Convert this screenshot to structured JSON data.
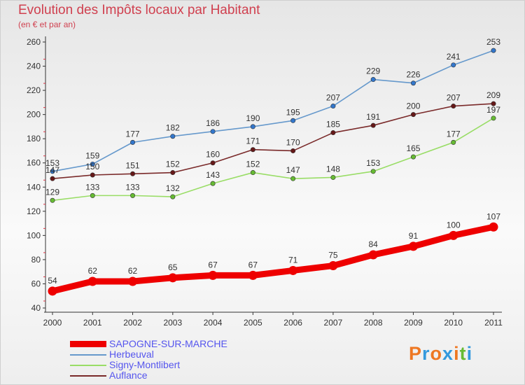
{
  "chart_data": {
    "type": "line",
    "title": "Evolution des Impôts locaux par Habitant",
    "subtitle": "(en € et par an)",
    "x": [
      "2000",
      "2001",
      "2002",
      "2003",
      "2004",
      "2005",
      "2006",
      "2007",
      "2008",
      "2009",
      "2010",
      "2011"
    ],
    "ylim": [
      40,
      260
    ],
    "yticks": [
      40,
      60,
      80,
      100,
      120,
      140,
      160,
      180,
      200,
      220,
      240,
      260
    ],
    "series": [
      {
        "name": "Herbeuval",
        "color": "#6699cc",
        "marker_color": "#3377cc",
        "values": [
          153,
          159,
          177,
          182,
          186,
          190,
          195,
          207,
          229,
          226,
          241,
          253
        ],
        "label_pos": "above"
      },
      {
        "name": "Auflance",
        "color": "#7a2a2a",
        "marker_color": "#661818",
        "values": [
          147,
          150,
          151,
          152,
          160,
          171,
          170,
          185,
          191,
          200,
          207,
          209
        ],
        "label_pos": "above"
      },
      {
        "name": "Signy-Montlibert",
        "color": "#99dd66",
        "marker_color": "#66bb33",
        "values": [
          129,
          133,
          133,
          132,
          143,
          152,
          147,
          148,
          153,
          165,
          177,
          197
        ],
        "label_pos": "above"
      },
      {
        "name": "SAPOGNE-SUR-MARCHE",
        "color": "#ee0000",
        "marker_color": "#ee0000",
        "values": [
          54,
          62,
          62,
          65,
          67,
          67,
          71,
          75,
          84,
          91,
          100,
          107
        ],
        "label_pos": "above",
        "bold": true
      }
    ],
    "legend": [
      "SAPOGNE-SUR-MARCHE",
      "Herbeuval",
      "Signy-Montlibert",
      "Auflance"
    ],
    "legend_placement": "bottom-left",
    "grid": false
  },
  "legend_items": [
    {
      "label": "SAPOGNE-SUR-MARCHE",
      "color": "#ee0000"
    },
    {
      "label": "Herbeuval",
      "color": "#6699cc"
    },
    {
      "label": "Signy-Montlibert",
      "color": "#99dd66"
    },
    {
      "label": "Auflance",
      "color": "#7a2a2a"
    }
  ],
  "logo": {
    "text": "Proxiti",
    "colors": [
      "#ee7722",
      "#3399dd",
      "#ee7722",
      "#3399dd",
      "#ee7722",
      "#66bb33",
      "#3399dd"
    ]
  }
}
